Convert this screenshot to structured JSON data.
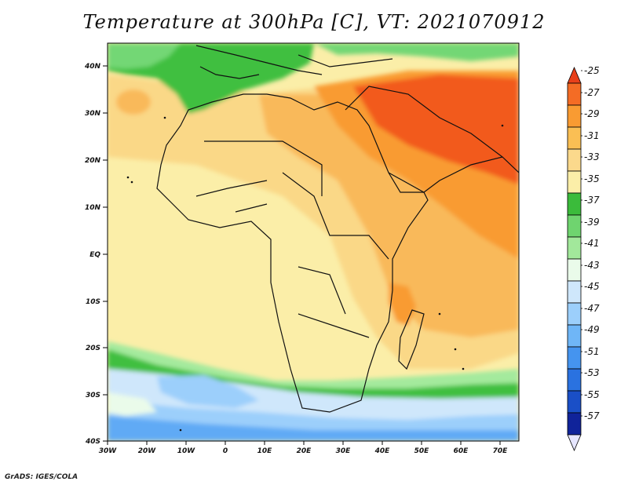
{
  "title": "Temperature at 300hPa [C], VT: 2021070912",
  "credit": "GrADS: IGES/COLA",
  "map": {
    "lat_labels": [
      "40N",
      "30N",
      "20N",
      "10N",
      "EQ",
      "10S",
      "20S",
      "30S",
      "40S"
    ],
    "lon_labels": [
      "30W",
      "20W",
      "10W",
      "0",
      "10E",
      "20E",
      "30E",
      "40E",
      "50E",
      "60E",
      "70E"
    ],
    "colors": {
      "orange_red": "#f25a1e",
      "orange": "#f99b32",
      "light_orange": "#f9b95a",
      "tan": "#f9d887",
      "pale_yellow": "#fbeea8",
      "green": "#3fbf3f",
      "mid_green": "#73d774",
      "light_green": "#a4ea9d",
      "cream": "#eafbea",
      "pale_blue": "#cfe7fb",
      "light_blue": "#9ccffb",
      "blue": "#61aaf5"
    }
  },
  "colorbar": {
    "labels": [
      "-25",
      "-27",
      "-29",
      "-31",
      "-33",
      "-35",
      "-37",
      "-39",
      "-41",
      "-43",
      "-45",
      "-47",
      "-49",
      "-51",
      "-53",
      "-55",
      "-57"
    ],
    "colors": [
      "#e8401a",
      "#f46c25",
      "#f99b32",
      "#fabf54",
      "#fbd98c",
      "#fbeea8",
      "#3bbb3b",
      "#6fd46f",
      "#a2e89b",
      "#eafbea",
      "#cfe7fb",
      "#9ccffb",
      "#6fb6f7",
      "#4594ef",
      "#2a72e0",
      "#1a4fc7",
      "#10239a",
      "#e6e6ff"
    ]
  }
}
